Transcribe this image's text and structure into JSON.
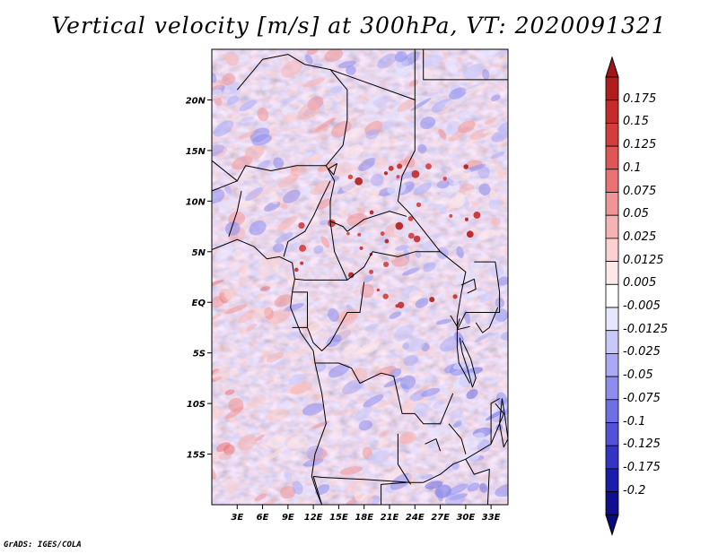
{
  "title": "Vertical velocity [m/s] at 300hPa, VT: 2020091321",
  "credit": "GrADS: IGES/COLA",
  "map": {
    "lat_labels": [
      "20N",
      "15N",
      "10N",
      "5N",
      "EQ",
      "5S",
      "10S",
      "15S"
    ],
    "lat_values": [
      20,
      15,
      10,
      5,
      0,
      -5,
      -10,
      -15
    ],
    "lon_labels": [
      "3E",
      "6E",
      "9E",
      "12E",
      "15E",
      "18E",
      "21E",
      "24E",
      "27E",
      "30E",
      "33E"
    ],
    "lon_values": [
      3,
      6,
      9,
      12,
      15,
      18,
      21,
      24,
      27,
      30,
      33
    ],
    "lon_range": [
      0,
      35
    ],
    "lat_range": [
      -20,
      25
    ]
  },
  "colorbar": {
    "labels": [
      "0.175",
      "0.15",
      "0.125",
      "0.1",
      "0.075",
      "0.05",
      "0.025",
      "0.0125",
      "0.005",
      "-0.005",
      "-0.0125",
      "-0.025",
      "-0.05",
      "-0.075",
      "-0.1",
      "-0.125",
      "-0.175",
      "-0.2"
    ],
    "colors": [
      "#b01d1d",
      "#c52b2b",
      "#d43d3d",
      "#e05656",
      "#e97373",
      "#f09595",
      "#f5b3b3",
      "#fad0d0",
      "#fde8e8",
      "#ffffff",
      "#e6e6ff",
      "#c8c8fb",
      "#a9a9f5",
      "#8d8dee",
      "#6f6fe4",
      "#5252d6",
      "#3434c4",
      "#1c1cac",
      "#10108f"
    ],
    "top_color": "#a01515",
    "bottom_color": "#0a0a80"
  },
  "colors": {
    "ocean_field": "#f1b8b8",
    "land_field": "#ffffff"
  }
}
